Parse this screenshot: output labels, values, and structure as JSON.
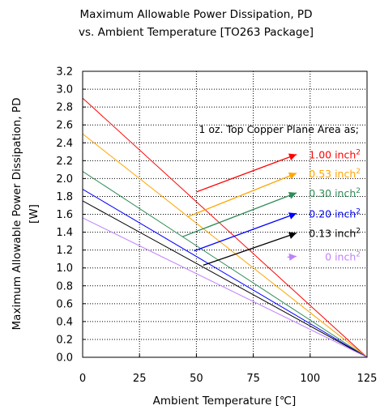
{
  "chart_data": {
    "type": "line",
    "title_lines": [
      "Maximum Allowable Power Dissipation, PD",
      "vs. Ambient Temperature [TO263 Package]"
    ],
    "xlabel": "Ambient Temperature [℃]",
    "ylabel_lines": [
      "Maximum Allowable Power Dissipation, PD",
      "[W]"
    ],
    "xlim": [
      0,
      125
    ],
    "ylim": [
      0,
      3.2
    ],
    "x_ticks": [
      "0",
      "25",
      "50",
      "75",
      "100",
      "125"
    ],
    "x_tick_values": [
      0,
      25,
      50,
      75,
      100,
      125
    ],
    "y_ticks": [
      "0.0",
      "0.2",
      "0.4",
      "0.6",
      "0.8",
      "1.0",
      "1.2",
      "1.4",
      "1.6",
      "1.8",
      "2.0",
      "2.2",
      "2.4",
      "2.6",
      "2.8",
      "3.0",
      "3.2"
    ],
    "y_tick_values": [
      0,
      0.2,
      0.4,
      0.6,
      0.8,
      1.0,
      1.2,
      1.4,
      1.6,
      1.8,
      2.0,
      2.2,
      2.4,
      2.6,
      2.8,
      3.0,
      3.2
    ],
    "grid": true,
    "legend_header": "1 oz. Top Copper Plane Area as;",
    "legend_sup": "2",
    "series": [
      {
        "name": "1.00 inch",
        "color": "#ff0000",
        "x": [
          0,
          125
        ],
        "y": [
          2.9,
          0
        ]
      },
      {
        "name": "0.53 inch",
        "color": "#ffa500",
        "x": [
          0,
          125
        ],
        "y": [
          2.5,
          0
        ]
      },
      {
        "name": "0.30 inch",
        "color": "#2e8b57",
        "x": [
          0,
          125
        ],
        "y": [
          2.08,
          0
        ]
      },
      {
        "name": "0.20 inch",
        "color": "#0000ff",
        "x": [
          0,
          125
        ],
        "y": [
          1.88,
          0
        ]
      },
      {
        "name": "0.13 inch",
        "color": "#000000",
        "x": [
          0,
          125
        ],
        "y": [
          1.75,
          0
        ]
      },
      {
        "name": "0 inch",
        "color": "#bf7fff",
        "x": [
          0,
          125
        ],
        "y": [
          1.56,
          0
        ]
      }
    ],
    "arrows": [
      {
        "series": 0,
        "from": [
          50,
          1.85
        ],
        "to": [
          94,
          2.27
        ]
      },
      {
        "series": 1,
        "from": [
          46,
          1.57
        ],
        "to": [
          94,
          2.06
        ]
      },
      {
        "series": 2,
        "from": [
          44,
          1.35
        ],
        "to": [
          94,
          1.84
        ]
      },
      {
        "series": 3,
        "from": [
          49,
          1.19
        ],
        "to": [
          94,
          1.61
        ]
      },
      {
        "series": 4,
        "from": [
          53,
          1.03
        ],
        "to": [
          94,
          1.39
        ]
      },
      {
        "series": 5,
        "from": [
          90,
          1.12
        ],
        "to": [
          94,
          1.13
        ]
      }
    ]
  }
}
